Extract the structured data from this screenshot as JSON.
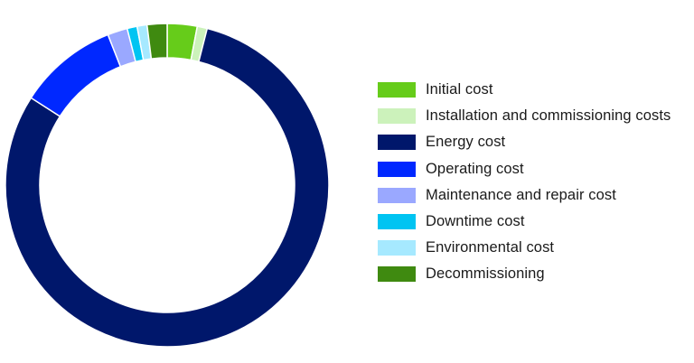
{
  "chart_data": {
    "type": "pie",
    "title": "",
    "categories": [
      "Initial cost",
      "Installation and commissioning costs",
      "Energy cost",
      "Operating cost",
      "Maintenance and repair cost",
      "Downtime cost",
      "Environmental cost",
      "Decommissioning"
    ],
    "values": [
      3.0,
      1.0,
      80.5,
      10.0,
      2.0,
      1.0,
      1.0,
      2.0
    ],
    "colors": [
      "#66cc1a",
      "#ccf2bb",
      "#00176b",
      "#0028ff",
      "#9aa8ff",
      "#00c4f2",
      "#a6e9ff",
      "#3f8a10"
    ],
    "legend_position": "right",
    "donut": true
  },
  "legend": {
    "items": [
      {
        "label": "Initial cost",
        "color": "#66cc1a"
      },
      {
        "label": "Installation and commissioning costs",
        "color": "#ccf2bb"
      },
      {
        "label": "Energy cost",
        "color": "#00176b"
      },
      {
        "label": "Operating cost",
        "color": "#0028ff"
      },
      {
        "label": "Maintenance and repair cost",
        "color": "#9aa8ff"
      },
      {
        "label": "Downtime cost",
        "color": "#00c4f2"
      },
      {
        "label": "Environmental cost",
        "color": "#a6e9ff"
      },
      {
        "label": "Decommissioning",
        "color": "#3f8a10"
      }
    ]
  }
}
